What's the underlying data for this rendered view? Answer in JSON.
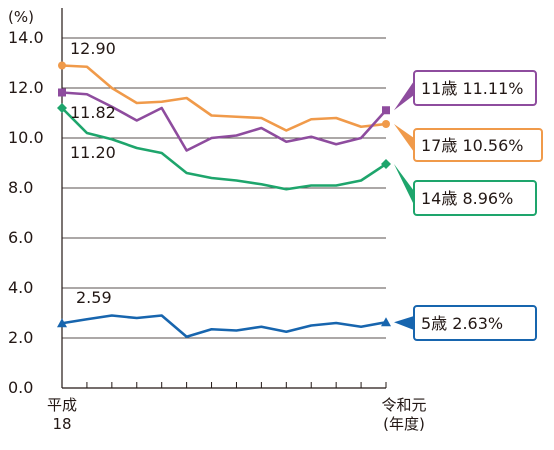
{
  "chart_data": {
    "type": "line",
    "y_unit": "(%)",
    "ylim": [
      0,
      14
    ],
    "y_ticks": [
      "0.0",
      "2.0",
      "4.0",
      "6.0",
      "8.0",
      "10.0",
      "12.0",
      "14.0"
    ],
    "grid": true,
    "x_start_label": [
      "平成",
      "18"
    ],
    "x_end_label": [
      "令和元",
      "(年度)"
    ],
    "x_count": 14,
    "series": [
      {
        "name": "17歳",
        "color": "#F09A4A",
        "marker": "circle",
        "values": [
          12.9,
          12.85,
          12.0,
          11.4,
          11.45,
          11.6,
          10.9,
          10.85,
          10.8,
          10.3,
          10.75,
          10.8,
          10.45,
          10.56
        ],
        "start_label": "12.90",
        "callout": "17歳 10.56%"
      },
      {
        "name": "11歳",
        "color": "#8E4C9E",
        "marker": "square",
        "values": [
          11.82,
          11.75,
          11.25,
          10.7,
          11.2,
          9.5,
          10.0,
          10.1,
          10.4,
          9.85,
          10.05,
          9.75,
          10.0,
          11.11
        ],
        "start_label": "11.82",
        "callout": "11歳 11.11%"
      },
      {
        "name": "14歳",
        "color": "#1EA56C",
        "marker": "diamond",
        "values": [
          11.2,
          10.2,
          9.95,
          9.6,
          9.4,
          8.6,
          8.4,
          8.3,
          8.15,
          7.95,
          8.1,
          8.1,
          8.3,
          8.96
        ],
        "start_label": "11.20",
        "callout": "14歳  8.96%"
      },
      {
        "name": "5歳",
        "color": "#1765AE",
        "marker": "triangle",
        "values": [
          2.59,
          2.75,
          2.9,
          2.8,
          2.9,
          2.05,
          2.35,
          2.3,
          2.45,
          2.25,
          2.5,
          2.6,
          2.45,
          2.63
        ],
        "start_label": "2.59",
        "callout": "5歳  2.63%"
      }
    ]
  }
}
